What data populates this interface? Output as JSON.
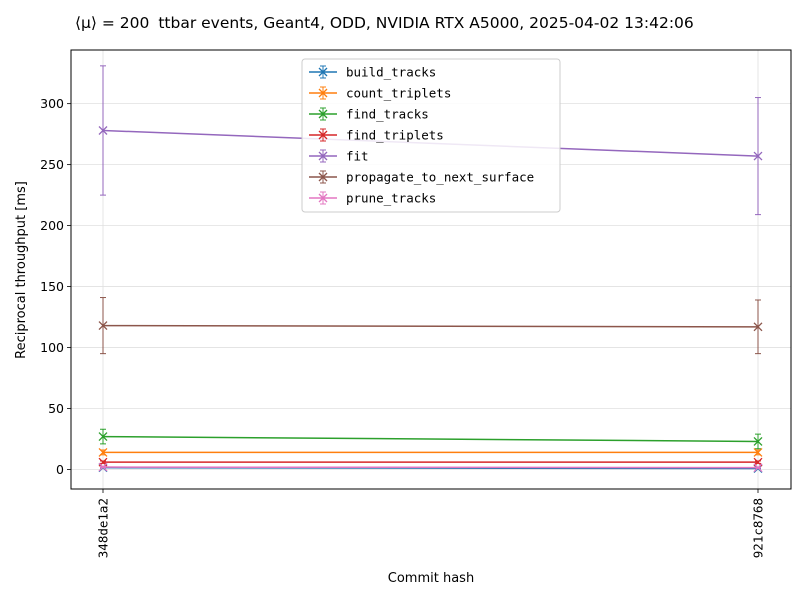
{
  "chart_data": {
    "type": "line",
    "title_prefix": "⟨μ⟩ = 200",
    "title_rest": "ttbar events, Geant4, ODD, NVIDIA RTX A5000, 2025-04-02 13:42:06",
    "xlabel": "Commit hash",
    "ylabel": "Reciprocal throughput [ms]",
    "categories": [
      "348de1a2",
      "921c8768"
    ],
    "ylim": [
      -16,
      344
    ],
    "yticks": [
      0,
      50,
      100,
      150,
      200,
      250,
      300
    ],
    "grid": true,
    "legend_position": "top-center",
    "marker": "x",
    "series": [
      {
        "name": "build_tracks",
        "color": "#1f77b4",
        "values": [
          1.5,
          0.8
        ],
        "errors": [
          0.3,
          0.3
        ]
      },
      {
        "name": "count_triplets",
        "color": "#ff7f0e",
        "values": [
          14,
          14
        ],
        "errors": [
          2,
          2
        ]
      },
      {
        "name": "find_tracks",
        "color": "#2ca02c",
        "values": [
          27,
          23
        ],
        "errors": [
          6,
          6
        ]
      },
      {
        "name": "find_triplets",
        "color": "#d62728",
        "values": [
          6,
          6
        ],
        "errors": [
          1,
          1
        ]
      },
      {
        "name": "fit",
        "color": "#9467bd",
        "values": [
          278,
          257
        ],
        "errors": [
          53,
          48
        ]
      },
      {
        "name": "propagate_to_next_surface",
        "color": "#8c564b",
        "values": [
          118,
          117
        ],
        "errors": [
          23,
          22
        ]
      },
      {
        "name": "prune_tracks",
        "color": "#e377c2",
        "values": [
          2,
          1.5
        ],
        "errors": [
          0.3,
          0.3
        ]
      }
    ]
  }
}
